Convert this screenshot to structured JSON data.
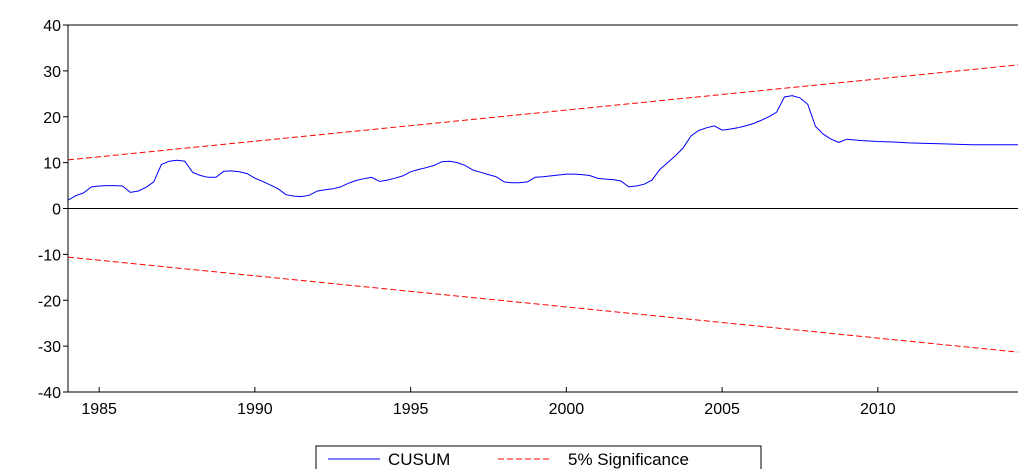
{
  "chart_data": {
    "type": "line",
    "title": "",
    "xlabel": "",
    "ylabel": "",
    "xlim": [
      1984.0,
      2014.5
    ],
    "ylim": [
      -40,
      40
    ],
    "x_ticks": [
      1985,
      1990,
      1995,
      2000,
      2005,
      2010
    ],
    "x_tick_labels": [
      "1985",
      "1990",
      "1995",
      "2000",
      "2005",
      "2010"
    ],
    "y_ticks": [
      -40,
      -30,
      -20,
      -10,
      0,
      10,
      20,
      30,
      40
    ],
    "y_tick_labels": [
      "-40",
      "-30",
      "-20",
      "-10",
      "0",
      "10",
      "20",
      "30",
      "40"
    ],
    "grid": false,
    "legend_position": "bottom-center",
    "legend": [
      "CUSUM",
      "5% Significance"
    ],
    "series": [
      {
        "name": "CUSUM",
        "color": "#0000ff",
        "style": "solid",
        "x": [
          1984.0,
          1984.25,
          1984.5,
          1984.75,
          1985.0,
          1985.25,
          1985.5,
          1985.75,
          1986.0,
          1986.25,
          1986.5,
          1986.75,
          1987.0,
          1987.25,
          1987.5,
          1987.75,
          1988.0,
          1988.25,
          1988.5,
          1988.75,
          1989.0,
          1989.25,
          1989.5,
          1989.75,
          1990.0,
          1990.25,
          1990.5,
          1990.75,
          1991.0,
          1991.25,
          1991.5,
          1991.75,
          1992.0,
          1992.25,
          1992.5,
          1992.75,
          1993.0,
          1993.25,
          1993.5,
          1993.75,
          1994.0,
          1994.25,
          1994.5,
          1994.75,
          1995.0,
          1995.25,
          1995.5,
          1995.75,
          1996.0,
          1996.25,
          1996.5,
          1996.75,
          1997.0,
          1997.25,
          1997.5,
          1997.75,
          1998.0,
          1998.25,
          1998.5,
          1998.75,
          1999.0,
          1999.25,
          1999.5,
          1999.75,
          2000.0,
          2000.25,
          2000.5,
          2000.75,
          2001.0,
          2001.25,
          2001.5,
          2001.75,
          2002.0,
          2002.25,
          2002.5,
          2002.75,
          2003.0,
          2003.25,
          2003.5,
          2003.75,
          2004.0,
          2004.25,
          2004.5,
          2004.75,
          2005.0,
          2005.25,
          2005.5,
          2005.75,
          2006.0,
          2006.25,
          2006.5,
          2006.75,
          2007.0,
          2007.25,
          2007.5,
          2007.75,
          2008.0,
          2008.25,
          2008.5,
          2008.75,
          2009.0,
          2009.5,
          2010.0,
          2010.5,
          2011.0,
          2011.5,
          2012.0,
          2012.5,
          2013.0,
          2013.5,
          2014.0,
          2014.5
        ],
        "y": [
          1.8,
          2.8,
          3.4,
          4.7,
          4.9,
          5.0,
          5.0,
          4.9,
          3.5,
          3.8,
          4.6,
          5.8,
          9.6,
          10.3,
          10.5,
          10.3,
          7.9,
          7.2,
          6.8,
          6.8,
          8.1,
          8.2,
          8.0,
          7.6,
          6.6,
          5.9,
          5.1,
          4.3,
          3.0,
          2.7,
          2.6,
          2.9,
          3.8,
          4.1,
          4.3,
          4.7,
          5.5,
          6.1,
          6.5,
          6.8,
          5.9,
          6.2,
          6.6,
          7.1,
          8.0,
          8.5,
          8.9,
          9.4,
          10.2,
          10.3,
          10.0,
          9.4,
          8.4,
          7.9,
          7.4,
          6.9,
          5.8,
          5.6,
          5.6,
          5.8,
          6.8,
          6.9,
          7.1,
          7.3,
          7.5,
          7.5,
          7.4,
          7.2,
          6.6,
          6.4,
          6.3,
          6.0,
          4.7,
          4.9,
          5.3,
          6.2,
          8.5,
          10.0,
          11.5,
          13.2,
          15.8,
          17.0,
          17.6,
          18.0,
          17.1,
          17.3,
          17.6,
          18.0,
          18.5,
          19.2,
          20.0,
          21.0,
          24.3,
          24.6,
          24.1,
          22.7,
          17.9,
          16.2,
          15.1,
          14.4,
          15.1,
          14.8,
          14.6,
          14.5,
          14.3,
          14.2,
          14.1,
          14.0,
          13.9,
          13.9,
          13.9,
          13.9
        ]
      },
      {
        "name": "5% Significance",
        "color": "#ff0000",
        "style": "dashed",
        "x": [
          1984.0,
          2014.5
        ],
        "y": [
          10.6,
          31.3
        ]
      },
      {
        "name": "5% Significance",
        "color": "#ff0000",
        "style": "dashed",
        "x": [
          1984.0,
          2014.5
        ],
        "y": [
          -10.6,
          -31.3
        ]
      }
    ]
  }
}
